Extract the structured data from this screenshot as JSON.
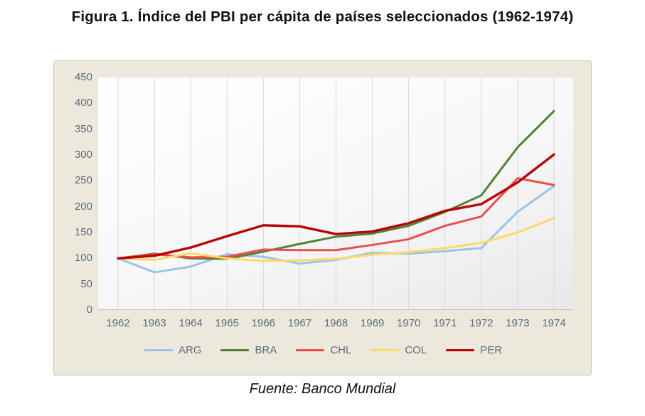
{
  "figure": {
    "title": "Figura 1. Índice del PBI per cápita de países seleccionados (1962-1974)",
    "source": "Fuente: Banco Mundial"
  },
  "colors": {
    "panel_background": "#ece8dc",
    "panel_border": "#c9c6ba",
    "axis_label": "#5c6d7e",
    "gridline": "#d8d8d8",
    "axis_line": "#bfbfbf",
    "legend_label": "#5f6d7d"
  },
  "chart_data": {
    "type": "line",
    "title": "",
    "xlabel": "",
    "ylabel": "",
    "x": [
      1962,
      1963,
      1964,
      1965,
      1966,
      1967,
      1968,
      1969,
      1970,
      1971,
      1972,
      1973,
      1974
    ],
    "x_labels": [
      "1962",
      "1963",
      "1964",
      "1965",
      "1966",
      "1967",
      "1968",
      "1969",
      "1970",
      "1971",
      "1972",
      "1973",
      "1974"
    ],
    "series": [
      {
        "name": "ARG",
        "color": "#9dc3e6",
        "values": [
          100,
          73,
          84,
          108,
          103,
          90,
          97,
          111,
          109,
          114,
          120,
          190,
          240
        ]
      },
      {
        "name": "BRA",
        "color": "#538135",
        "values": [
          100,
          109,
          100,
          99,
          113,
          128,
          142,
          148,
          163,
          190,
          222,
          315,
          385
        ]
      },
      {
        "name": "CHL",
        "color": "#ee4c4c",
        "values": [
          100,
          108,
          102,
          103,
          117,
          116,
          116,
          126,
          137,
          163,
          181,
          255,
          242
        ]
      },
      {
        "name": "COL",
        "color": "#ffd966",
        "values": [
          100,
          97,
          110,
          100,
          95,
          96,
          99,
          107,
          112,
          120,
          130,
          150,
          178
        ]
      },
      {
        "name": "PER",
        "color": "#b70606",
        "values": [
          100,
          105,
          121,
          143,
          164,
          162,
          147,
          152,
          168,
          192,
          205,
          247,
          301
        ]
      }
    ],
    "ylim": [
      0,
      450
    ],
    "y_ticks": [
      0,
      50,
      100,
      150,
      200,
      250,
      300,
      350,
      400,
      450
    ],
    "grid": "vertical-only",
    "legend_position": "bottom"
  }
}
